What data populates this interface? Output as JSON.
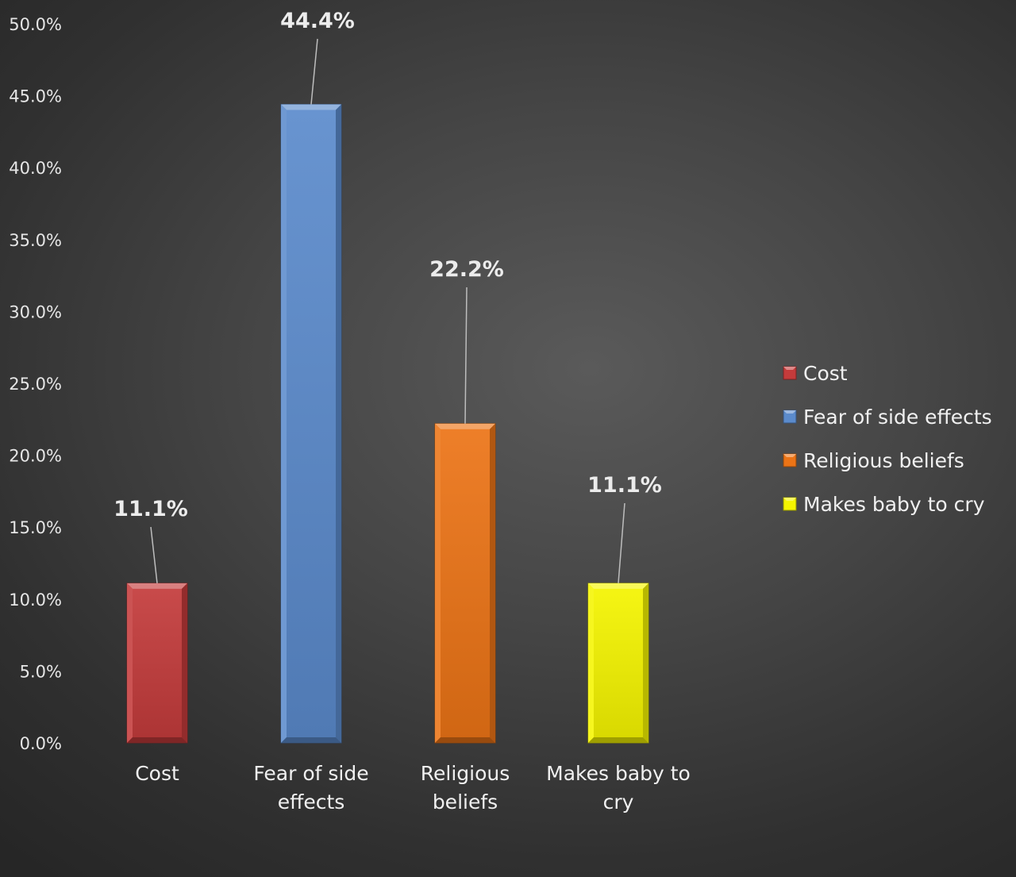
{
  "chart_data": {
    "type": "bar",
    "categories": [
      "Cost",
      "Fear of side effects",
      "Religious beliefs",
      "Makes baby to cry"
    ],
    "category_lines": [
      [
        "Cost"
      ],
      [
        "Fear of side",
        "effects"
      ],
      [
        "Religious",
        "beliefs"
      ],
      [
        "Makes baby to",
        "cry"
      ]
    ],
    "values": [
      11.1,
      44.4,
      22.2,
      11.1
    ],
    "data_labels": [
      "11.1%",
      "44.4%",
      "22.2%",
      "11.1%"
    ],
    "colors": [
      "#c43b3b",
      "#5b8bcc",
      "#ec7416",
      "#f5f500"
    ],
    "title": "",
    "xlabel": "",
    "ylabel": "",
    "ylim": [
      0,
      50
    ],
    "ytick_step": 5,
    "ytick_labels": [
      "0.0%",
      "5.0%",
      "10.0%",
      "15.0%",
      "20.0%",
      "25.0%",
      "30.0%",
      "35.0%",
      "40.0%",
      "45.0%",
      "50.0%"
    ],
    "grid": false,
    "legend": {
      "placement": "right",
      "entries": [
        "Cost",
        "Fear of side effects",
        "Religious beliefs",
        "Makes baby to cry"
      ]
    }
  }
}
